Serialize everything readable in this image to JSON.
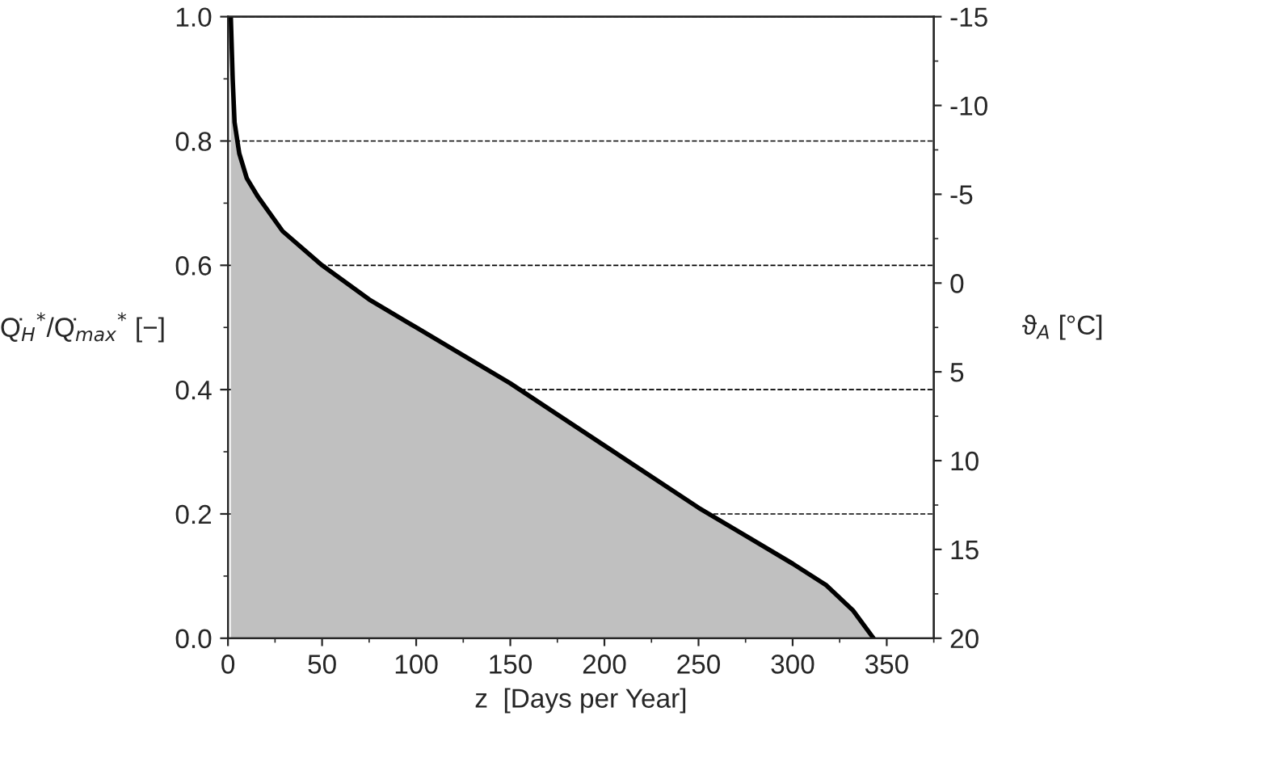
{
  "chart_data": {
    "type": "area",
    "xlabel": "z  [Days per Year]",
    "ylabel": "Q̇$_{H}$$^{*}$/Q̇$_{max}$$^{*}$ [−]",
    "y2label": "ϑ$_{A}$ [°C]",
    "x": [
      1.5,
      2.5,
      3.5,
      6,
      10,
      16,
      29,
      50,
      75,
      100,
      150,
      200,
      250,
      275,
      300,
      318,
      332,
      343
    ],
    "series": [
      {
        "color": "#c0c0c0",
        "values": [
          1.0,
          0.9,
          0.83,
          0.78,
          0.74,
          0.71,
          0.655,
          0.6,
          0.545,
          0.5,
          0.41,
          0.31,
          0.21,
          0.165,
          0.12,
          0.085,
          0.045,
          0.0
        ]
      }
    ],
    "xlim": [
      0,
      375
    ],
    "xticks": [
      0,
      50,
      100,
      150,
      200,
      250,
      300,
      350
    ],
    "ylim": [
      0,
      1
    ],
    "yticks": [
      {
        "value": 0,
        "label": "0.0"
      },
      {
        "value": 0.2,
        "label": "0.2"
      },
      {
        "value": 0.4,
        "label": "0.4"
      },
      {
        "value": 0.6,
        "label": "0.6"
      },
      {
        "value": 0.8,
        "label": "0.8"
      },
      {
        "value": 1,
        "label": "1.0"
      }
    ],
    "y2lim": [
      20,
      -15
    ],
    "y2ticks": [
      20,
      15,
      10,
      5,
      0,
      -5,
      -10,
      -15
    ],
    "grid": "y",
    "legend": false
  }
}
